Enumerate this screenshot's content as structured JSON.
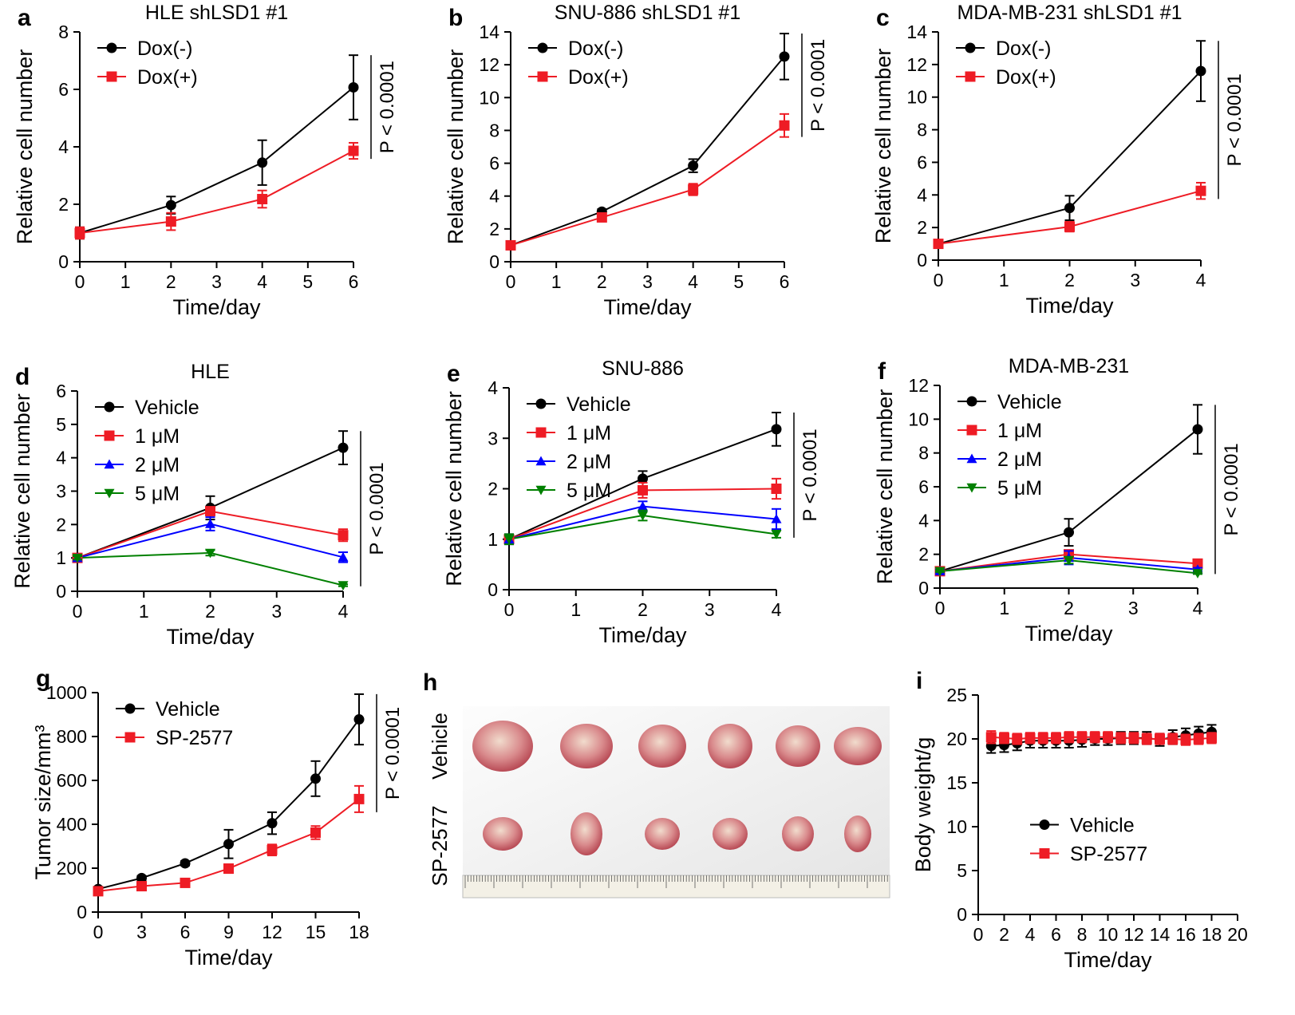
{
  "chart_data": [
    {
      "type": "line",
      "panel": "a",
      "title": "HLE shLSD1 #1",
      "x_label": "Time/day",
      "y_label": "Relative cell number",
      "x": [
        0,
        2,
        4,
        6
      ],
      "xlim": [
        0,
        6
      ],
      "xticks": [
        0,
        1,
        2,
        3,
        4,
        5,
        6
      ],
      "ylim": [
        0,
        8
      ],
      "yticks": [
        0,
        2,
        4,
        6,
        8
      ],
      "legend": "upper left",
      "annotation": "P < 0.0001",
      "series": [
        {
          "name": "Dox(-)",
          "color": "#000000",
          "marker": "circle",
          "values": [
            1,
            1.97,
            3.45,
            6.07
          ],
          "errors": [
            0.2,
            0.3,
            0.78,
            1.12
          ]
        },
        {
          "name": "Dox(+)",
          "color": "#ee1c25",
          "marker": "square",
          "values": [
            1,
            1.4,
            2.18,
            3.86
          ],
          "errors": [
            0.2,
            0.3,
            0.3,
            0.28
          ]
        }
      ]
    },
    {
      "type": "line",
      "panel": "b",
      "title": "SNU-886 shLSD1 #1",
      "x_label": "Time/day",
      "y_label": "Relative cell number",
      "x": [
        0,
        2,
        4,
        6
      ],
      "xlim": [
        0,
        6
      ],
      "xticks": [
        0,
        1,
        2,
        3,
        4,
        5,
        6
      ],
      "ylim": [
        0,
        14
      ],
      "yticks": [
        0,
        2,
        4,
        6,
        8,
        10,
        12,
        14
      ],
      "legend": "upper left",
      "annotation": "P < 0.0001",
      "series": [
        {
          "name": "Dox(-)",
          "color": "#000000",
          "marker": "circle",
          "values": [
            1,
            3.05,
            5.85,
            12.5
          ],
          "errors": [
            0.15,
            0.15,
            0.4,
            1.4
          ]
        },
        {
          "name": "Dox(+)",
          "color": "#ee1c25",
          "marker": "square",
          "values": [
            1,
            2.7,
            4.4,
            8.3
          ],
          "errors": [
            0.1,
            0.15,
            0.35,
            0.7
          ]
        }
      ]
    },
    {
      "type": "line",
      "panel": "c",
      "title": "MDA-MB-231 shLSD1 #1",
      "x_label": "Time/day",
      "y_label": "Relative cell number",
      "x": [
        0,
        2,
        4
      ],
      "xlim": [
        0,
        4
      ],
      "xticks": [
        0,
        1,
        2,
        3,
        4
      ],
      "ylim": [
        0,
        14
      ],
      "yticks": [
        0,
        2,
        4,
        6,
        8,
        10,
        12,
        14
      ],
      "legend": "upper left",
      "annotation": "P < 0.0001",
      "series": [
        {
          "name": "Dox(-)",
          "color": "#000000",
          "marker": "circle",
          "values": [
            1,
            3.2,
            11.6
          ],
          "errors": [
            0.15,
            0.75,
            1.85
          ]
        },
        {
          "name": "Dox(+)",
          "color": "#ee1c25",
          "marker": "square",
          "values": [
            1,
            2.05,
            4.25
          ],
          "errors": [
            0.1,
            0.3,
            0.5
          ]
        }
      ]
    },
    {
      "type": "line",
      "panel": "d",
      "title": "HLE",
      "x_label": "Time/day",
      "y_label": "Relative cell number",
      "x": [
        0,
        2,
        4
      ],
      "xlim": [
        0,
        4
      ],
      "xticks": [
        0,
        1,
        2,
        3,
        4
      ],
      "ylim": [
        0,
        6
      ],
      "yticks": [
        0,
        1,
        2,
        3,
        4,
        5,
        6
      ],
      "legend": "upper left",
      "annotation": "P < 0.0001",
      "series": [
        {
          "name": "Vehicle",
          "color": "#000000",
          "marker": "circle",
          "values": [
            1,
            2.5,
            4.3
          ],
          "errors": [
            0.05,
            0.35,
            0.5
          ]
        },
        {
          "name": "1 μM",
          "color": "#ee1c25",
          "marker": "square",
          "values": [
            1,
            2.4,
            1.68
          ],
          "errors": [
            0.05,
            0.1,
            0.18
          ]
        },
        {
          "name": "2 μM",
          "color": "#0000ff",
          "marker": "triangle",
          "values": [
            1,
            2.02,
            1.02
          ],
          "errors": [
            0.05,
            0.2,
            0.15
          ]
        },
        {
          "name": "5 μM",
          "color": "#008000",
          "marker": "triangle-down",
          "values": [
            1,
            1.15,
            0.18
          ],
          "errors": [
            0.05,
            0.08,
            0.03
          ]
        }
      ]
    },
    {
      "type": "line",
      "panel": "e",
      "title": "SNU-886",
      "x_label": "Time/day",
      "y_label": "Relative cell number",
      "x": [
        0,
        2,
        4
      ],
      "xlim": [
        0,
        4
      ],
      "xticks": [
        0,
        1,
        2,
        3,
        4
      ],
      "ylim": [
        0,
        4
      ],
      "yticks": [
        0,
        1,
        2,
        3,
        4
      ],
      "legend": "upper left",
      "annotation": "P < 0.0001",
      "series": [
        {
          "name": "Vehicle",
          "color": "#000000",
          "marker": "circle",
          "values": [
            1,
            2.2,
            3.18
          ],
          "errors": [
            0.1,
            0.15,
            0.33
          ]
        },
        {
          "name": "1 μM",
          "color": "#ee1c25",
          "marker": "square",
          "values": [
            1,
            1.97,
            2.0
          ],
          "errors": [
            0.08,
            0.15,
            0.2
          ]
        },
        {
          "name": "2 μM",
          "color": "#0000ff",
          "marker": "triangle",
          "values": [
            1,
            1.65,
            1.4
          ],
          "errors": [
            0.1,
            0.1,
            0.2
          ]
        },
        {
          "name": "5 μM",
          "color": "#008000",
          "marker": "triangle-down",
          "values": [
            1,
            1.47,
            1.1
          ],
          "errors": [
            0.1,
            0.1,
            0.07
          ]
        }
      ]
    },
    {
      "type": "line",
      "panel": "f",
      "title": "MDA-MB-231",
      "x_label": "Time/day",
      "y_label": "Relative cell number",
      "x": [
        0,
        2,
        4
      ],
      "xlim": [
        0,
        4
      ],
      "xticks": [
        0,
        1,
        2,
        3,
        4
      ],
      "ylim": [
        0,
        12
      ],
      "yticks": [
        0,
        2,
        4,
        6,
        8,
        10,
        12
      ],
      "legend": "upper left",
      "annotation": "P < 0.0001",
      "series": [
        {
          "name": "Vehicle",
          "color": "#000000",
          "marker": "circle",
          "values": [
            1,
            3.3,
            9.4
          ],
          "errors": [
            0.1,
            0.8,
            1.45
          ]
        },
        {
          "name": "1 μM",
          "color": "#ee1c25",
          "marker": "square",
          "values": [
            1,
            2.0,
            1.45
          ],
          "errors": [
            0.1,
            0.2,
            0.15
          ]
        },
        {
          "name": "2 μM",
          "color": "#0000ff",
          "marker": "triangle",
          "values": [
            1,
            1.8,
            1.1
          ],
          "errors": [
            0.1,
            0.4,
            0.1
          ]
        },
        {
          "name": "5 μM",
          "color": "#008000",
          "marker": "triangle-down",
          "values": [
            1,
            1.65,
            0.88
          ],
          "errors": [
            0.05,
            0.2,
            0.05
          ]
        }
      ]
    },
    {
      "type": "line",
      "panel": "g",
      "x_label": "Time/day",
      "y_label": "Tumor size/mm³",
      "x": [
        0,
        3,
        6,
        9,
        12,
        15,
        18
      ],
      "xlim": [
        0,
        18
      ],
      "xticks": [
        0,
        3,
        6,
        9,
        12,
        15,
        18
      ],
      "ylim": [
        0,
        1000
      ],
      "yticks": [
        0,
        200,
        400,
        600,
        800,
        1000
      ],
      "legend": "upper left",
      "annotation": "P < 0.0001",
      "series": [
        {
          "name": "Vehicle",
          "color": "#000000",
          "marker": "circle",
          "values": [
            105,
            155,
            222,
            310,
            405,
            608,
            878
          ],
          "errors": [
            10,
            10,
            10,
            65,
            50,
            80,
            115
          ]
        },
        {
          "name": "SP-2577",
          "color": "#ee1c25",
          "marker": "square",
          "values": [
            95,
            118,
            133,
            198,
            283,
            362,
            515
          ],
          "errors": [
            10,
            10,
            10,
            20,
            25,
            30,
            60
          ]
        }
      ]
    },
    {
      "type": "image",
      "panel": "h",
      "row_labels": [
        "Vehicle",
        "SP-2577"
      ]
    },
    {
      "type": "line",
      "panel": "i",
      "x_label": "Time/day",
      "y_label": "Body weight/g",
      "x": [
        1,
        2,
        3,
        4,
        5,
        6,
        7,
        8,
        9,
        10,
        11,
        12,
        13,
        14,
        15,
        16,
        17,
        18
      ],
      "xlim": [
        0,
        20
      ],
      "xticks": [
        0,
        2,
        4,
        6,
        8,
        10,
        12,
        14,
        16,
        18,
        20
      ],
      "ylim": [
        0,
        25
      ],
      "yticks": [
        0,
        5,
        10,
        15,
        20,
        25
      ],
      "legend": "center right",
      "series": [
        {
          "name": "Vehicle",
          "color": "#000000",
          "marker": "circle",
          "values": [
            19.2,
            19.3,
            19.5,
            19.8,
            19.8,
            19.8,
            19.8,
            19.9,
            20.0,
            20.0,
            20.1,
            20.1,
            20.1,
            19.9,
            20.2,
            20.4,
            20.6,
            20.8
          ],
          "errors": [
            0.8,
            0.8,
            0.8,
            0.8,
            0.8,
            0.8,
            0.8,
            0.8,
            0.7,
            0.7,
            0.7,
            0.7,
            0.7,
            0.7,
            0.8,
            0.8,
            0.8,
            0.8
          ]
        },
        {
          "name": "SP-2577",
          "color": "#ee1c25",
          "marker": "square",
          "values": [
            20.2,
            20.1,
            20.0,
            20.1,
            20.1,
            20.1,
            20.2,
            20.2,
            20.2,
            20.2,
            20.1,
            20.1,
            20.0,
            20.0,
            20.0,
            19.9,
            20.0,
            20.1
          ],
          "errors": [
            0.7,
            0.6,
            0.6,
            0.6,
            0.6,
            0.6,
            0.6,
            0.6,
            0.6,
            0.6,
            0.6,
            0.6,
            0.6,
            0.6,
            0.6,
            0.6,
            0.6,
            0.6
          ]
        }
      ]
    }
  ]
}
